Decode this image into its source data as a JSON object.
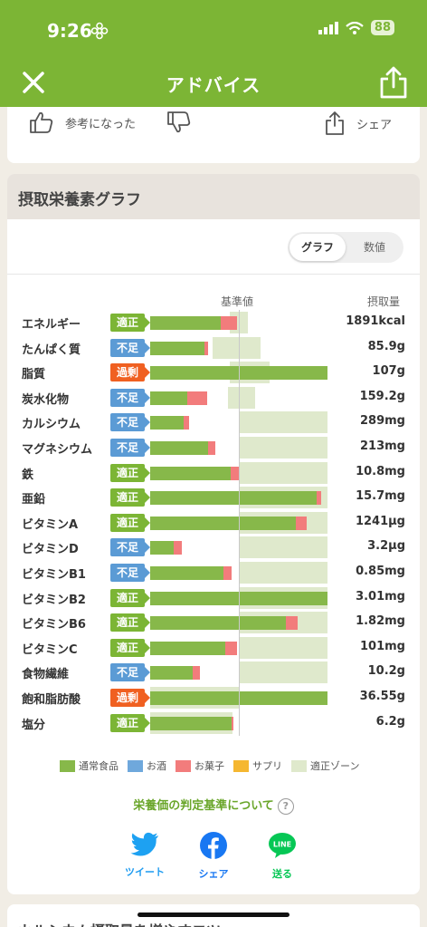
{
  "status": {
    "time": "9:26",
    "battery": "88"
  },
  "nav": {
    "title": "アドバイス"
  },
  "feedback": {
    "helpful_label": "参考になった",
    "share_label": "シェア"
  },
  "section": {
    "title": "摂取栄養素グラフ"
  },
  "toggle": {
    "graph": "グラフ",
    "number": "数値"
  },
  "headers": {
    "kijun": "基準値",
    "intake": "摂取量"
  },
  "colors": {
    "tekisei": "#7cb535",
    "fusoku": "#5b9bd5",
    "kajou": "#f06021",
    "food": "#87b84a",
    "alcohol": "#6fa8dc",
    "snack": "#f27c7c",
    "supplement": "#f5b731",
    "zone": "#dfe9cc"
  },
  "chart_data": {
    "type": "bar",
    "title": "摂取栄養素グラフ",
    "reference_label": "基準値",
    "value_label": "摂取量",
    "categories": [
      "エネルギー",
      "たんぱく質",
      "脂質",
      "炭水化物",
      "カルシウム",
      "マグネシウム",
      "鉄",
      "亜鉛",
      "ビタミンA",
      "ビタミンD",
      "ビタミンB1",
      "ビタミンB2",
      "ビタミンB6",
      "ビタミンC",
      "食物繊維",
      "飽和脂肪酸",
      "塩分"
    ],
    "status": [
      "適正",
      "不足",
      "過剰",
      "不足",
      "不足",
      "不足",
      "適正",
      "適正",
      "適正",
      "不足",
      "不足",
      "適正",
      "適正",
      "適正",
      "不足",
      "過剰",
      "適正"
    ],
    "values_text": [
      "1891kcal",
      "85.9g",
      "107g",
      "159.2g",
      "289mg",
      "213mg",
      "10.8mg",
      "15.7mg",
      "1241μg",
      "3.2μg",
      "0.85mg",
      "3.01mg",
      "1.82mg",
      "101mg",
      "10.2g",
      "36.55g",
      "6.2g"
    ],
    "series": [
      {
        "name": "通常食品",
        "values": [
          80,
          61,
          200,
          42,
          38,
          65,
          91,
          188,
          164,
          27,
          83,
          200,
          153,
          85,
          48,
          200,
          92
        ]
      },
      {
        "name": "お菓子",
        "values": [
          18,
          4,
          0,
          22,
          6,
          8,
          10,
          5,
          13,
          9,
          9,
          0,
          13,
          13,
          8,
          0,
          2
        ]
      }
    ],
    "optimal_zone": [
      [
        90,
        110
      ],
      [
        70,
        125
      ],
      [
        90,
        135
      ],
      [
        88,
        118
      ],
      [
        100,
        200
      ],
      [
        100,
        200
      ],
      [
        100,
        200
      ],
      [
        100,
        200
      ],
      [
        100,
        200
      ],
      [
        100,
        200
      ],
      [
        100,
        200
      ],
      [
        100,
        200
      ],
      [
        100,
        200
      ],
      [
        100,
        200
      ],
      [
        100,
        200
      ],
      [
        0,
        100
      ],
      [
        0,
        93
      ]
    ],
    "reference_value": 100,
    "xlim": [
      0,
      200
    ],
    "legend_position": "bottom"
  },
  "legend": [
    {
      "label": "通常食品",
      "color": "#87b84a"
    },
    {
      "label": "お酒",
      "color": "#6fa8dc"
    },
    {
      "label": "お菓子",
      "color": "#f27c7c"
    },
    {
      "label": "サプリ",
      "color": "#f5b731"
    },
    {
      "label": "適正ゾーン",
      "color": "#dfe9cc"
    }
  ],
  "criteria_link": "栄養価の判定基準について",
  "social": {
    "twitter": "ツイート",
    "facebook": "シェア",
    "line": "送る",
    "line_logo": "LINE"
  },
  "next_section_title": "カルシウム摂取量を増やすコツ"
}
